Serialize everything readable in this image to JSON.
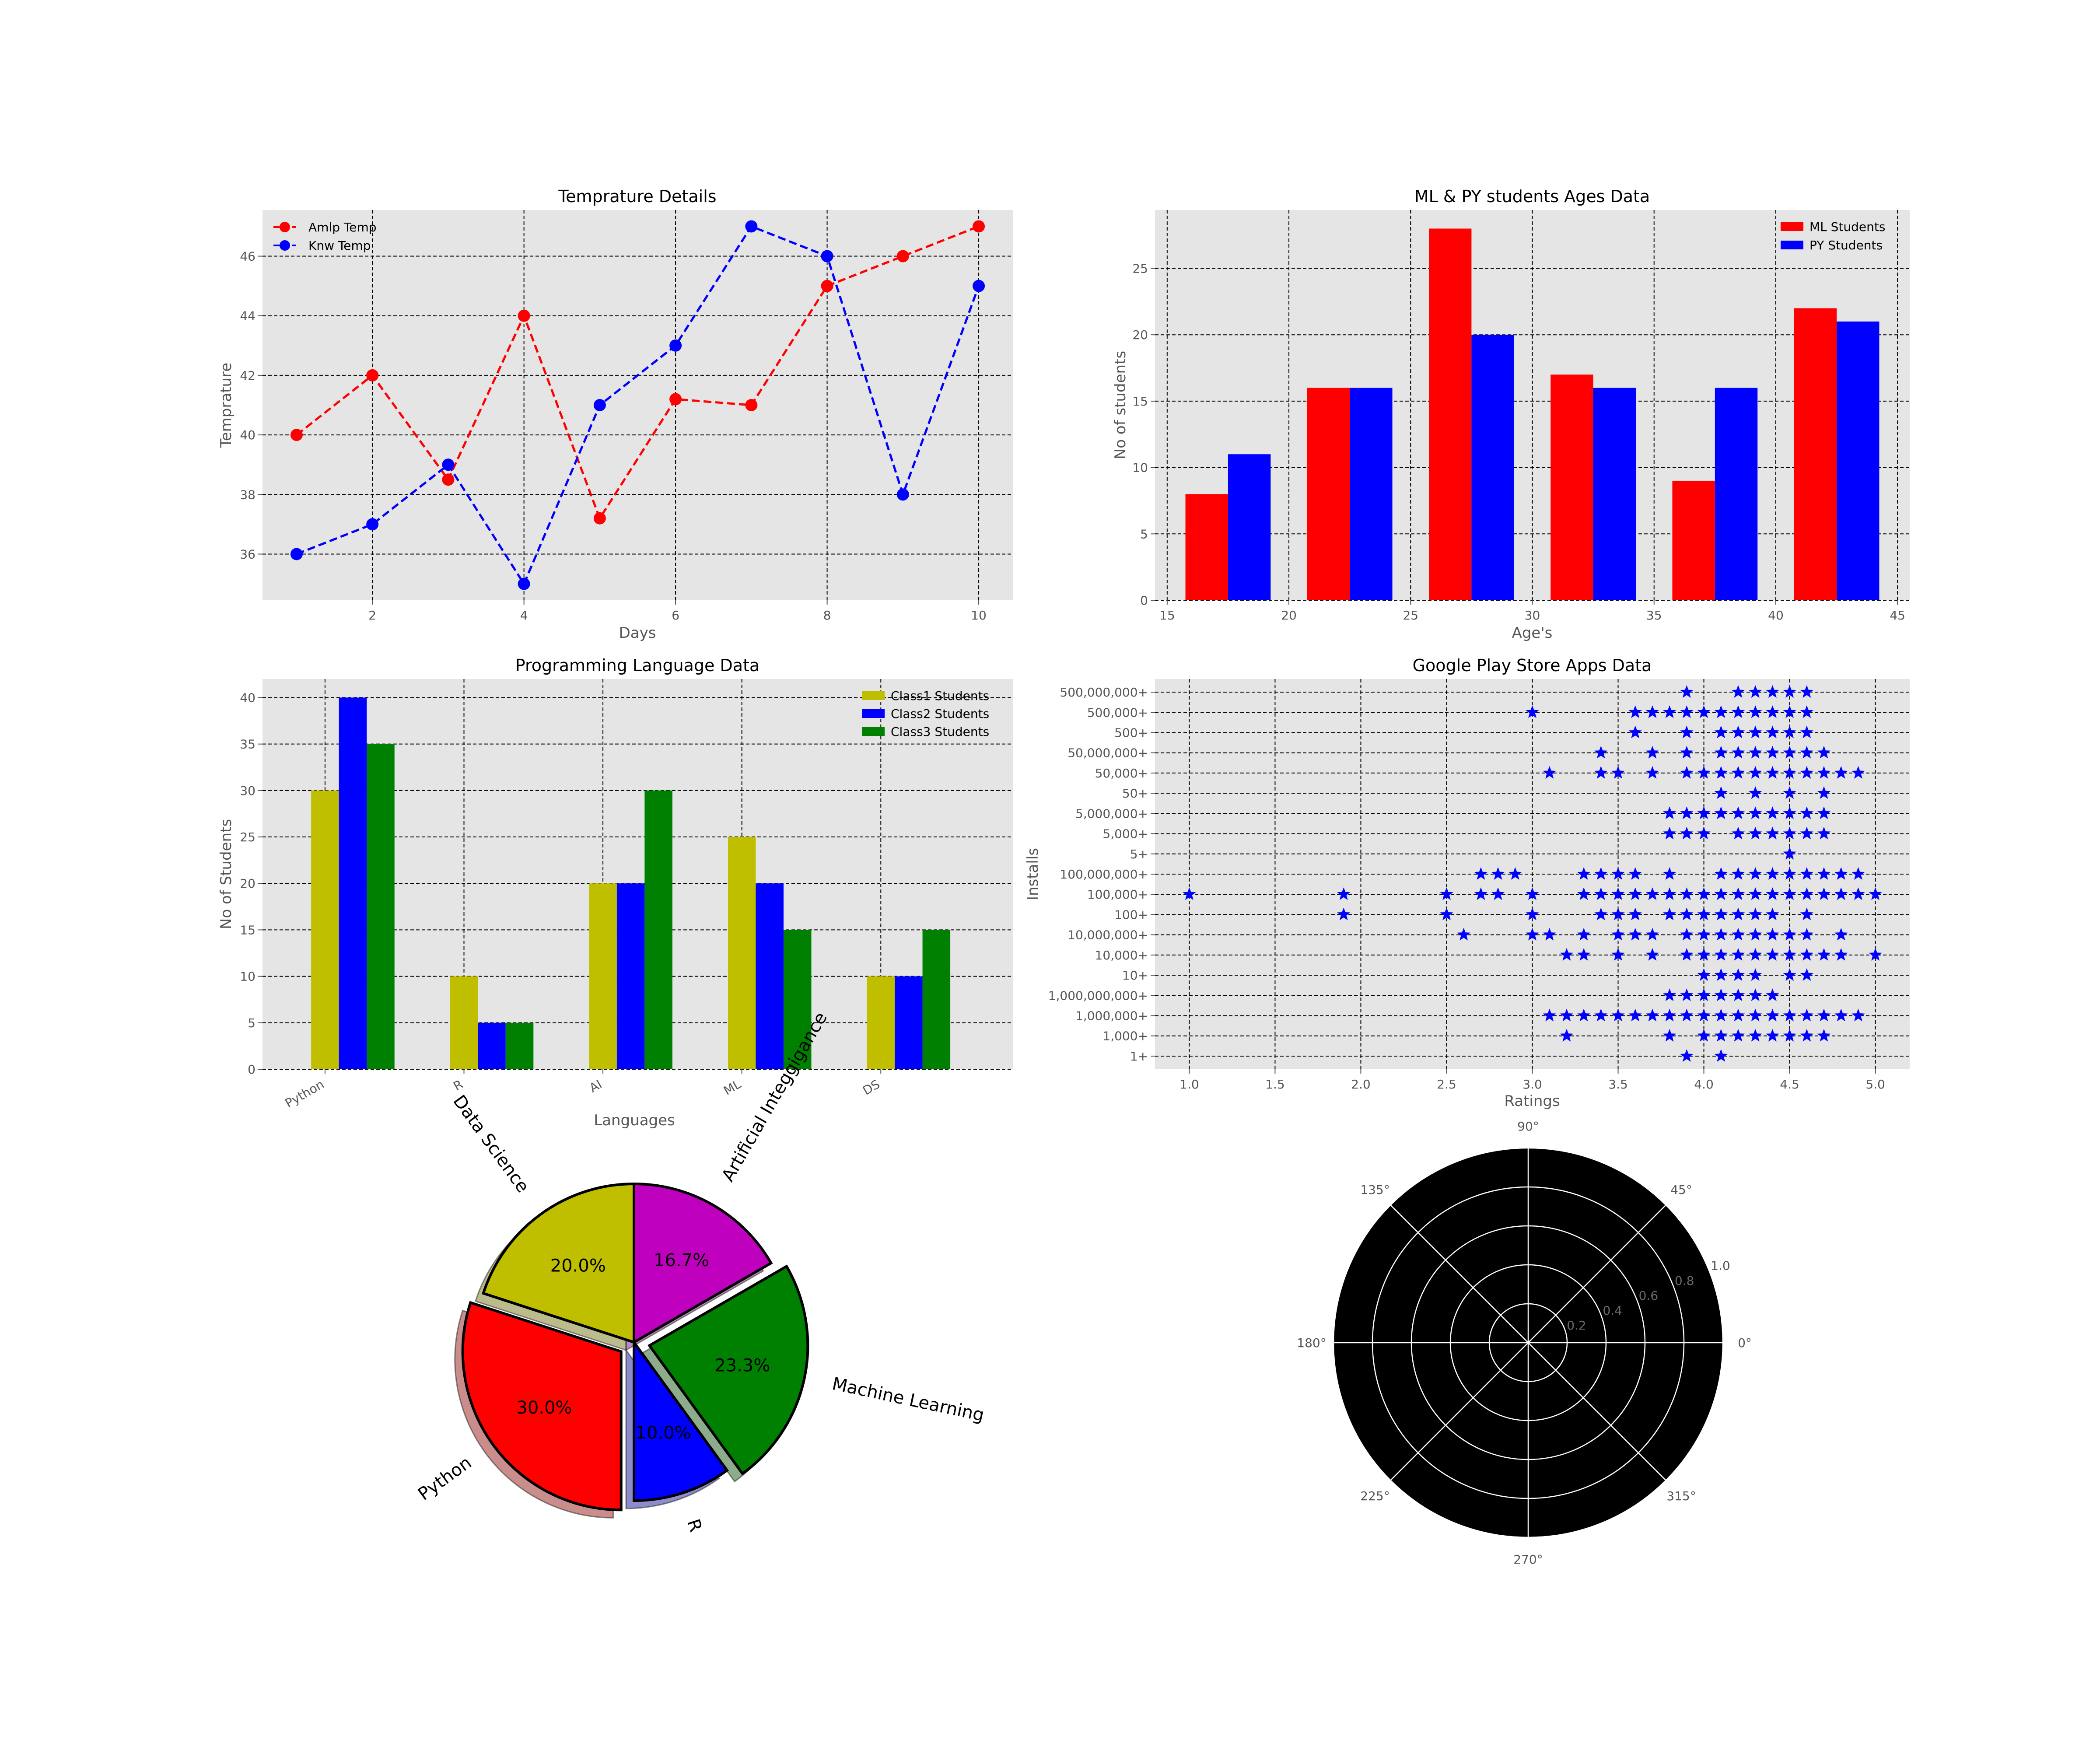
{
  "colors": {
    "axes_bg": "#e5e5e5",
    "grid": "#000000",
    "tick_text": "#555555",
    "red": "#ff0000",
    "blue": "#0000ff",
    "olive": "#bfbf00",
    "green": "#008000",
    "magenta": "#bf00bf",
    "black": "#000000",
    "white": "#ffffff"
  },
  "chart_data": [
    {
      "id": "temp",
      "type": "line",
      "title": "Temprature Details",
      "xlabel": "Days",
      "ylabel": "Temprature",
      "xlim": [
        0.55,
        10.45
      ],
      "ylim": [
        34.45,
        47.55
      ],
      "xticks": [
        "2",
        "4",
        "6",
        "8",
        "10"
      ],
      "xtick_values": [
        2,
        4,
        6,
        8,
        10
      ],
      "yticks": [
        "36",
        "38",
        "40",
        "42",
        "44",
        "46"
      ],
      "ytick_values": [
        36,
        38,
        40,
        42,
        44,
        46
      ],
      "grid": true,
      "legend": "upper-left",
      "x": [
        1,
        2,
        3,
        4,
        5,
        6,
        7,
        8,
        9,
        10
      ],
      "series": [
        {
          "name": "Amlp Temp",
          "color": "#ff0000",
          "values": [
            40,
            42,
            38.5,
            44,
            37.2,
            41.2,
            41,
            45,
            46,
            47
          ]
        },
        {
          "name": "Knw Temp",
          "color": "#0000ff",
          "values": [
            36,
            37,
            39,
            35,
            41,
            43,
            47,
            46,
            38,
            45
          ]
        }
      ]
    },
    {
      "id": "ages",
      "type": "bar",
      "title": "ML & PY students Ages Data",
      "xlabel": "Age's",
      "ylabel": "No of students",
      "xlim": [
        14.5,
        45.5
      ],
      "ylim": [
        0,
        29.4
      ],
      "xticks": [
        "15",
        "20",
        "25",
        "30",
        "35",
        "40",
        "45"
      ],
      "xtick_values": [
        15,
        20,
        25,
        30,
        35,
        40,
        45
      ],
      "yticks": [
        "0",
        "5",
        "10",
        "15",
        "20",
        "25"
      ],
      "ytick_values": [
        0,
        5,
        10,
        15,
        20,
        25
      ],
      "grid": true,
      "legend": "upper-right",
      "bar_width": 1.75,
      "centers": [
        17.5,
        22.5,
        27.5,
        32.5,
        37.5,
        42.5
      ],
      "series": [
        {
          "name": "ML Students",
          "color": "#ff0000",
          "values": [
            8,
            16,
            28,
            17,
            9,
            22
          ]
        },
        {
          "name": "PY Students",
          "color": "#0000ff",
          "values": [
            11,
            16,
            20,
            16,
            16,
            21
          ]
        }
      ]
    },
    {
      "id": "lang",
      "type": "bar",
      "title": "Programming Language Data",
      "xlabel": "Languages",
      "ylabel": "No of Students",
      "categories": [
        "Python",
        "R",
        "AI",
        "ML",
        "DS"
      ],
      "ylim": [
        0,
        42
      ],
      "yticks": [
        "0",
        "5",
        "10",
        "15",
        "20",
        "25",
        "30",
        "35",
        "40"
      ],
      "ytick_values": [
        0,
        5,
        10,
        15,
        20,
        25,
        30,
        35,
        40
      ],
      "grid": true,
      "legend": "upper-right",
      "series": [
        {
          "name": "Class1 Students",
          "color": "#bfbf00",
          "values": [
            30,
            10,
            20,
            25,
            10
          ]
        },
        {
          "name": "Class2 Students",
          "color": "#0000ff",
          "values": [
            40,
            5,
            20,
            20,
            10
          ]
        },
        {
          "name": "Class3 Students",
          "color": "#008000",
          "values": [
            35,
            5,
            30,
            15,
            15
          ]
        }
      ]
    },
    {
      "id": "apps",
      "type": "scatter",
      "title": "Google Play Store Apps Data",
      "xlabel": "Ratings",
      "ylabel": "Installs",
      "xlim": [
        0.8,
        5.2
      ],
      "xticks": [
        "1.0",
        "1.5",
        "2.0",
        "2.5",
        "3.0",
        "3.5",
        "4.0",
        "4.5",
        "5.0"
      ],
      "xtick_values": [
        1.0,
        1.5,
        2.0,
        2.5,
        3.0,
        3.5,
        4.0,
        4.5,
        5.0
      ],
      "grid": true,
      "marker": "star",
      "color": "#0000ff",
      "categories": [
        "1+",
        "1,000+",
        "1,000,000+",
        "1,000,000,000+",
        "10+",
        "10,000+",
        "10,000,000+",
        "100+",
        "100,000+",
        "100,000,000+",
        "5+",
        "5,000+",
        "5,000,000+",
        "50+",
        "50,000+",
        "50,000,000+",
        "500+",
        "500,000+",
        "500,000,000+"
      ],
      "points": [
        [
          "1+",
          [
            3.9,
            4.1
          ]
        ],
        [
          "1,000+",
          [
            3.2,
            3.8,
            4.0,
            4.1,
            4.2,
            4.3,
            4.4,
            4.5,
            4.6,
            4.7
          ]
        ],
        [
          "1,000,000+",
          [
            3.1,
            3.2,
            3.3,
            3.4,
            3.5,
            3.6,
            3.7,
            3.8,
            3.9,
            4.0,
            4.1,
            4.2,
            4.3,
            4.4,
            4.5,
            4.6,
            4.7,
            4.8,
            4.9
          ]
        ],
        [
          "1,000,000,000+",
          [
            3.8,
            3.9,
            4.0,
            4.1,
            4.2,
            4.3,
            4.4
          ]
        ],
        [
          "10+",
          [
            4.0,
            4.1,
            4.2,
            4.3,
            4.5,
            4.6
          ]
        ],
        [
          "10,000+",
          [
            3.2,
            3.3,
            3.5,
            3.7,
            3.9,
            4.0,
            4.1,
            4.2,
            4.3,
            4.4,
            4.5,
            4.6,
            4.7,
            4.8,
            5.0
          ]
        ],
        [
          "10,000,000+",
          [
            2.6,
            3.0,
            3.1,
            3.3,
            3.5,
            3.6,
            3.7,
            3.9,
            4.0,
            4.1,
            4.2,
            4.3,
            4.4,
            4.5,
            4.6,
            4.8
          ]
        ],
        [
          "100+",
          [
            1.9,
            2.5,
            3.0,
            3.4,
            3.5,
            3.6,
            3.8,
            3.9,
            4.0,
            4.1,
            4.2,
            4.3,
            4.4,
            4.6
          ]
        ],
        [
          "100,000+",
          [
            1.0,
            1.9,
            2.5,
            2.7,
            2.8,
            3.0,
            3.3,
            3.4,
            3.5,
            3.6,
            3.7,
            3.8,
            3.9,
            4.0,
            4.1,
            4.2,
            4.3,
            4.4,
            4.5,
            4.6,
            4.7,
            4.8,
            4.9,
            5.0
          ]
        ],
        [
          "100,000,000+",
          [
            2.7,
            2.8,
            2.9,
            3.3,
            3.4,
            3.5,
            3.6,
            3.8,
            4.1,
            4.2,
            4.3,
            4.4,
            4.5,
            4.6,
            4.7,
            4.8,
            4.9
          ]
        ],
        [
          "5+",
          [
            4.5
          ]
        ],
        [
          "5,000+",
          [
            3.8,
            3.9,
            4.0,
            4.2,
            4.3,
            4.4,
            4.5,
            4.6,
            4.7
          ]
        ],
        [
          "5,000,000+",
          [
            3.8,
            3.9,
            4.0,
            4.1,
            4.2,
            4.3,
            4.4,
            4.5,
            4.6,
            4.7
          ]
        ],
        [
          "50+",
          [
            4.1,
            4.3,
            4.5,
            4.7
          ]
        ],
        [
          "50,000+",
          [
            3.1,
            3.4,
            3.5,
            3.7,
            3.9,
            4.0,
            4.1,
            4.2,
            4.3,
            4.4,
            4.5,
            4.6,
            4.7,
            4.8,
            4.9
          ]
        ],
        [
          "50,000,000+",
          [
            3.4,
            3.7,
            3.9,
            4.1,
            4.2,
            4.3,
            4.4,
            4.5,
            4.6,
            4.7
          ]
        ],
        [
          "500+",
          [
            3.6,
            3.9,
            4.1,
            4.2,
            4.3,
            4.4,
            4.5,
            4.6
          ]
        ],
        [
          "500,000+",
          [
            3.0,
            3.6,
            3.7,
            3.8,
            3.9,
            4.0,
            4.1,
            4.2,
            4.3,
            4.4,
            4.5,
            4.6
          ]
        ],
        [
          "500,000,000+",
          [
            3.9,
            4.2,
            4.3,
            4.4,
            4.5,
            4.6
          ]
        ]
      ]
    },
    {
      "id": "pie",
      "type": "pie",
      "start_angle": 90,
      "shadow": true,
      "slices": [
        {
          "label": "Data Science",
          "value": 6,
          "pct": "20.0%",
          "color": "#bfbf00",
          "explode": 0
        },
        {
          "label": "Python",
          "value": 9,
          "pct": "30.0%",
          "color": "#ff0000",
          "explode": 0.1
        },
        {
          "label": "R",
          "value": 3,
          "pct": "10.0%",
          "color": "#0000ff",
          "explode": 0
        },
        {
          "label": "Machine Learning",
          "value": 7,
          "pct": "23.3%",
          "color": "#008000",
          "explode": 0.1
        },
        {
          "label": "Artificial Integgigance",
          "value": 5,
          "pct": "16.7%",
          "color": "#bf00bf",
          "explode": 0
        }
      ]
    },
    {
      "id": "polar",
      "type": "polar",
      "background": "#000000",
      "grid_color": "#ffffff",
      "angle_ticks": [
        "0°",
        "45°",
        "90°",
        "135°",
        "180°",
        "225°",
        "270°",
        "315°"
      ],
      "angle_values": [
        0,
        45,
        90,
        135,
        180,
        225,
        270,
        315
      ],
      "radial_ticks": [
        "0.2",
        "0.4",
        "0.6",
        "0.8",
        "1.0"
      ],
      "radial_values": [
        0.2,
        0.4,
        0.6,
        0.8,
        1.0
      ],
      "rmax": 1.0
    }
  ]
}
